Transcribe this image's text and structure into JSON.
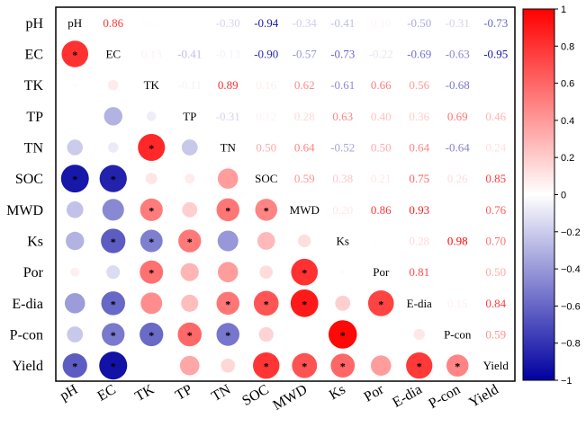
{
  "chart_data": {
    "type": "heatmap",
    "variables": [
      "pH",
      "EC",
      "TK",
      "TP",
      "TN",
      "SOC",
      "MWD",
      "Ks",
      "Por",
      "E-dia",
      "P-con",
      "Yield"
    ],
    "upper_triangle_values": [
      [
        null,
        0.86,
        0.03,
        0.0,
        -0.3,
        -0.94,
        -0.34,
        -0.41,
        0.1,
        -0.5,
        -0.31,
        -0.73
      ],
      [
        null,
        null,
        0.13,
        -0.41,
        -0.13,
        -0.9,
        -0.57,
        -0.73,
        -0.22,
        -0.69,
        -0.63,
        -0.95
      ],
      [
        null,
        null,
        null,
        -0.11,
        0.89,
        0.16,
        0.62,
        -0.61,
        0.66,
        0.56,
        -0.68,
        null
      ],
      [
        null,
        null,
        null,
        null,
        -0.31,
        0.12,
        0.28,
        0.63,
        0.4,
        0.36,
        0.69,
        0.46
      ],
      [
        null,
        null,
        null,
        null,
        null,
        0.5,
        0.64,
        -0.52,
        0.5,
        0.64,
        -0.64,
        0.24
      ],
      [
        null,
        null,
        null,
        null,
        null,
        null,
        0.59,
        0.38,
        0.21,
        0.75,
        0.26,
        0.85
      ],
      [
        null,
        null,
        null,
        null,
        null,
        null,
        null,
        0.2,
        0.86,
        0.93,
        null,
        0.76
      ],
      [
        null,
        null,
        null,
        null,
        null,
        null,
        null,
        null,
        0.03,
        0.28,
        0.98,
        0.7
      ],
      [
        null,
        null,
        null,
        null,
        null,
        null,
        null,
        null,
        null,
        0.81,
        null,
        0.5
      ],
      [
        null,
        null,
        null,
        null,
        null,
        null,
        null,
        null,
        null,
        null,
        0.15,
        0.84
      ],
      [
        null,
        null,
        null,
        null,
        null,
        null,
        null,
        null,
        null,
        null,
        null,
        0.59
      ],
      [
        null,
        null,
        null,
        null,
        null,
        null,
        null,
        null,
        null,
        null,
        null,
        null
      ]
    ],
    "coefficient_labels": [
      [
        null,
        "0.86",
        "0.03",
        "",
        "-0.30",
        "-0.94",
        "-0.34",
        "-0.41",
        "0.10",
        "-0.50",
        "-0.31",
        "-0.73"
      ],
      [
        null,
        null,
        "0.13",
        "-0.41",
        "-0.13",
        "-0.90",
        "-0.57",
        "-0.73",
        "-0.22",
        "-0.69",
        "-0.63",
        "-0.95"
      ],
      [
        null,
        null,
        null,
        "-0.11",
        "0.89",
        "0.16",
        "0.62",
        "-0.61",
        "0.66",
        "0.56",
        "-0.68",
        ""
      ],
      [
        null,
        null,
        null,
        null,
        "-0.31",
        "0.12",
        "0.28",
        "0.63",
        "0.40",
        "0.36",
        "0.69",
        "0.46"
      ],
      [
        null,
        null,
        null,
        null,
        null,
        "0.50",
        "0.64",
        "-0.52",
        "0.50",
        "0.64",
        "-0.64",
        "0.24"
      ],
      [
        null,
        null,
        null,
        null,
        null,
        null,
        "0.59",
        "0.38",
        "0.21",
        "0.75",
        "0.26",
        "0.85"
      ],
      [
        null,
        null,
        null,
        null,
        null,
        null,
        null,
        "0.20",
        "0.86",
        "0.93",
        "",
        "0.76"
      ],
      [
        null,
        null,
        null,
        null,
        null,
        null,
        null,
        null,
        "0.03",
        "0.28",
        "0.98",
        "0.70"
      ],
      [
        null,
        null,
        null,
        null,
        null,
        null,
        null,
        null,
        null,
        "0.81",
        "",
        "0.50"
      ],
      [
        null,
        null,
        null,
        null,
        null,
        null,
        null,
        null,
        null,
        null,
        "0.15",
        "0.84"
      ],
      [
        null,
        null,
        null,
        null,
        null,
        null,
        null,
        null,
        null,
        null,
        null,
        "0.59"
      ],
      [
        null,
        null,
        null,
        null,
        null,
        null,
        null,
        null,
        null,
        null,
        null,
        null
      ]
    ],
    "lower_triangle_circles": [
      {
        "row": "EC",
        "col": "pH",
        "value": 0.86,
        "significant": true
      },
      {
        "row": "TK",
        "col": "pH",
        "value": 0.03,
        "significant": false
      },
      {
        "row": "TK",
        "col": "EC",
        "value": 0.13,
        "significant": false
      },
      {
        "row": "TP",
        "col": "EC",
        "value": -0.41,
        "significant": false
      },
      {
        "row": "TP",
        "col": "TK",
        "value": -0.11,
        "significant": false
      },
      {
        "row": "TN",
        "col": "pH",
        "value": -0.3,
        "significant": false
      },
      {
        "row": "TN",
        "col": "EC",
        "value": -0.13,
        "significant": false
      },
      {
        "row": "TN",
        "col": "TK",
        "value": 0.89,
        "significant": true
      },
      {
        "row": "TN",
        "col": "TP",
        "value": -0.31,
        "significant": false
      },
      {
        "row": "SOC",
        "col": "pH",
        "value": -0.94,
        "significant": true
      },
      {
        "row": "SOC",
        "col": "EC",
        "value": -0.9,
        "significant": true
      },
      {
        "row": "SOC",
        "col": "TK",
        "value": 0.16,
        "significant": false
      },
      {
        "row": "SOC",
        "col": "TP",
        "value": 0.12,
        "significant": false
      },
      {
        "row": "SOC",
        "col": "TN",
        "value": 0.5,
        "significant": false
      },
      {
        "row": "MWD",
        "col": "pH",
        "value": -0.34,
        "significant": false
      },
      {
        "row": "MWD",
        "col": "EC",
        "value": -0.57,
        "significant": false
      },
      {
        "row": "MWD",
        "col": "TK",
        "value": 0.62,
        "significant": true
      },
      {
        "row": "MWD",
        "col": "TP",
        "value": 0.28,
        "significant": false
      },
      {
        "row": "MWD",
        "col": "TN",
        "value": 0.64,
        "significant": true
      },
      {
        "row": "MWD",
        "col": "SOC",
        "value": 0.59,
        "significant": true
      },
      {
        "row": "Ks",
        "col": "pH",
        "value": -0.41,
        "significant": false
      },
      {
        "row": "Ks",
        "col": "EC",
        "value": -0.73,
        "significant": true
      },
      {
        "row": "Ks",
        "col": "TK",
        "value": -0.61,
        "significant": true
      },
      {
        "row": "Ks",
        "col": "TP",
        "value": 0.63,
        "significant": true
      },
      {
        "row": "Ks",
        "col": "TN",
        "value": -0.52,
        "significant": false
      },
      {
        "row": "Ks",
        "col": "SOC",
        "value": 0.38,
        "significant": false
      },
      {
        "row": "Ks",
        "col": "MWD",
        "value": 0.2,
        "significant": false
      },
      {
        "row": "Por",
        "col": "pH",
        "value": 0.1,
        "significant": false
      },
      {
        "row": "Por",
        "col": "EC",
        "value": -0.22,
        "significant": false
      },
      {
        "row": "Por",
        "col": "TK",
        "value": 0.66,
        "significant": true
      },
      {
        "row": "Por",
        "col": "TP",
        "value": 0.4,
        "significant": false
      },
      {
        "row": "Por",
        "col": "TN",
        "value": 0.5,
        "significant": false
      },
      {
        "row": "Por",
        "col": "SOC",
        "value": 0.21,
        "significant": false
      },
      {
        "row": "Por",
        "col": "MWD",
        "value": 0.86,
        "significant": true
      },
      {
        "row": "Por",
        "col": "Ks",
        "value": 0.03,
        "significant": false
      },
      {
        "row": "E-dia",
        "col": "pH",
        "value": -0.5,
        "significant": false
      },
      {
        "row": "E-dia",
        "col": "EC",
        "value": -0.69,
        "significant": true
      },
      {
        "row": "E-dia",
        "col": "TK",
        "value": 0.56,
        "significant": false
      },
      {
        "row": "E-dia",
        "col": "TP",
        "value": 0.36,
        "significant": false
      },
      {
        "row": "E-dia",
        "col": "TN",
        "value": 0.64,
        "significant": true
      },
      {
        "row": "E-dia",
        "col": "SOC",
        "value": 0.75,
        "significant": true
      },
      {
        "row": "E-dia",
        "col": "MWD",
        "value": 0.93,
        "significant": true
      },
      {
        "row": "E-dia",
        "col": "Ks",
        "value": 0.28,
        "significant": false
      },
      {
        "row": "E-dia",
        "col": "Por",
        "value": 0.81,
        "significant": true
      },
      {
        "row": "P-con",
        "col": "pH",
        "value": -0.31,
        "significant": false
      },
      {
        "row": "P-con",
        "col": "EC",
        "value": -0.63,
        "significant": true
      },
      {
        "row": "P-con",
        "col": "TK",
        "value": -0.68,
        "significant": true
      },
      {
        "row": "P-con",
        "col": "TP",
        "value": 0.69,
        "significant": true
      },
      {
        "row": "P-con",
        "col": "TN",
        "value": -0.64,
        "significant": true
      },
      {
        "row": "P-con",
        "col": "SOC",
        "value": 0.26,
        "significant": false
      },
      {
        "row": "P-con",
        "col": "MWD",
        "value": null,
        "significant": false
      },
      {
        "row": "P-con",
        "col": "Ks",
        "value": 0.98,
        "significant": true
      },
      {
        "row": "P-con",
        "col": "Por",
        "value": null,
        "significant": false
      },
      {
        "row": "P-con",
        "col": "E-dia",
        "value": 0.15,
        "significant": false
      },
      {
        "row": "Yield",
        "col": "pH",
        "value": -0.73,
        "significant": true
      },
      {
        "row": "Yield",
        "col": "EC",
        "value": -0.95,
        "significant": true
      },
      {
        "row": "Yield",
        "col": "TK",
        "value": null,
        "significant": false
      },
      {
        "row": "Yield",
        "col": "TP",
        "value": 0.46,
        "significant": false
      },
      {
        "row": "Yield",
        "col": "TN",
        "value": 0.24,
        "significant": false
      },
      {
        "row": "Yield",
        "col": "SOC",
        "value": 0.85,
        "significant": true
      },
      {
        "row": "Yield",
        "col": "MWD",
        "value": 0.76,
        "significant": true
      },
      {
        "row": "Yield",
        "col": "Ks",
        "value": 0.7,
        "significant": true
      },
      {
        "row": "Yield",
        "col": "Por",
        "value": 0.5,
        "significant": false
      },
      {
        "row": "Yield",
        "col": "E-dia",
        "value": 0.84,
        "significant": true
      },
      {
        "row": "Yield",
        "col": "P-con",
        "value": 0.59,
        "significant": true
      }
    ],
    "significance_marker": "*",
    "colorbar": {
      "range": [
        -1,
        1
      ],
      "ticks": [
        "1",
        "0.8",
        "0.6",
        "0.4",
        "0.2",
        "0",
        "−0.2",
        "−0.4",
        "−0.6",
        "−0.8",
        "−1"
      ],
      "tick_values": [
        1,
        0.8,
        0.6,
        0.4,
        0.2,
        0,
        -0.2,
        -0.4,
        -0.6,
        -0.8,
        -1
      ],
      "colors": {
        "negative": "#0000a0",
        "zero": "#ffffff",
        "positive": "#ff0000"
      }
    }
  }
}
